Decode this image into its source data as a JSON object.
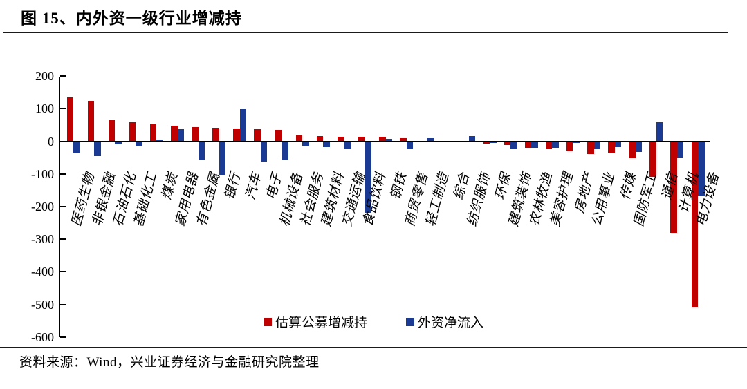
{
  "figure": {
    "title": "图 15、内外资一级行业增减持",
    "source": "资料来源：Wind，兴业证券经济与金融研究院整理"
  },
  "colors": {
    "public_fund_red": "#c00000",
    "foreign_blue": "#1a3a94",
    "axis_black": "#000000"
  },
  "legend": {
    "items": [
      {
        "label": "估算公募增减持",
        "color": "#c00000"
      },
      {
        "label": "外资净流入",
        "color": "#1a3a94"
      }
    ]
  },
  "chart_data": {
    "type": "bar",
    "title": "内外资一级行业增减持",
    "xlabel": "",
    "ylabel": "",
    "ylim": [
      -600,
      200
    ],
    "yticks": [
      200,
      100,
      0,
      -100,
      -200,
      -300,
      -400,
      -500,
      -600
    ],
    "grid": false,
    "legend_position": "bottom-center",
    "categories": [
      "医药生物",
      "非银金融",
      "石油石化",
      "基础化工",
      "煤炭",
      "家用电器",
      "有色金属",
      "银行",
      "汽车",
      "电子",
      "机械设备",
      "社会服务",
      "建筑材料",
      "交通运输",
      "食品饮料",
      "钢铁",
      "商贸零售",
      "轻工制造",
      "综合",
      "纺织服饰",
      "环保",
      "建筑装饰",
      "农林牧渔",
      "美容护理",
      "房地产",
      "公用事业",
      "传媒",
      "国防军工",
      "通信",
      "计算机",
      "电力设备"
    ],
    "series": [
      {
        "name": "估算公募增减持",
        "color": "#c00000",
        "values": [
          135,
          123,
          67,
          58,
          51,
          48,
          44,
          41,
          40,
          37,
          35,
          18,
          16,
          14,
          14,
          13,
          9,
          1,
          0,
          0,
          -5,
          -10,
          -17,
          -22,
          -28,
          -38,
          -34,
          -49,
          -108,
          -278,
          -508
        ]
      },
      {
        "name": "外资净流入",
        "color": "#1a3a94",
        "values": [
          -32,
          -43,
          -7,
          -13,
          6,
          38,
          -53,
          -102,
          98,
          -60,
          -54,
          -12,
          -16,
          -23,
          -218,
          7,
          -22,
          9,
          0,
          16,
          -1,
          -21,
          -19,
          -17,
          -2,
          -23,
          -15,
          -30,
          58,
          -48,
          -165
        ]
      }
    ]
  }
}
